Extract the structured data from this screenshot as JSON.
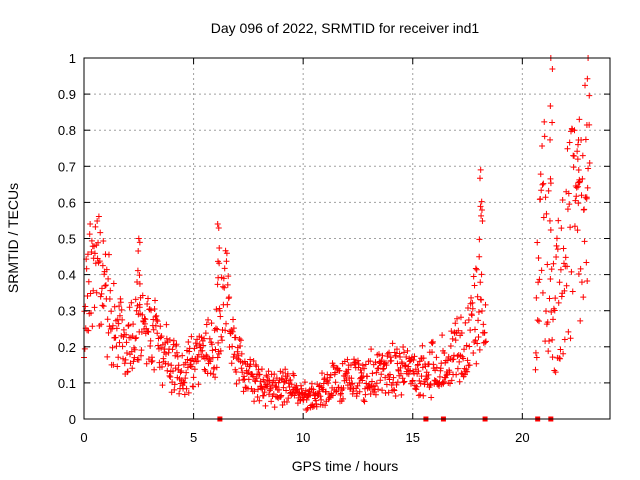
{
  "chart_data": {
    "type": "scatter",
    "title": "Day 096 of 2022, SRMTID for receiver ind1",
    "xlabel": "GPS time / hours",
    "ylabel": "SRMTID / TECUs",
    "xlim": [
      0,
      24
    ],
    "ylim": [
      0,
      1
    ],
    "x_ticks": [
      0,
      5,
      10,
      15,
      20
    ],
    "x_tick_labels": [
      "0",
      "5",
      "10",
      "15",
      "20"
    ],
    "y_ticks": [
      0,
      0.1,
      0.2,
      0.3,
      0.4,
      0.5,
      0.6,
      0.7,
      0.8,
      0.9,
      1
    ],
    "y_tick_labels": [
      "0",
      "0.1",
      "0.2",
      "0.3",
      "0.4",
      "0.5",
      "0.6",
      "0.7",
      "0.8",
      "0.9",
      "1"
    ],
    "grid": true,
    "marker": "+",
    "series": [
      {
        "name": "SRMTID",
        "color": "#ff0000",
        "trend": [
          {
            "x": 0.0,
            "y": 0.3
          },
          {
            "x": 0.3,
            "y": 0.4
          },
          {
            "x": 0.6,
            "y": 0.42
          },
          {
            "x": 1.0,
            "y": 0.33
          },
          {
            "x": 1.5,
            "y": 0.25
          },
          {
            "x": 2.0,
            "y": 0.2
          },
          {
            "x": 2.5,
            "y": 0.3
          },
          {
            "x": 3.0,
            "y": 0.24
          },
          {
            "x": 3.5,
            "y": 0.2
          },
          {
            "x": 4.0,
            "y": 0.15
          },
          {
            "x": 4.5,
            "y": 0.13
          },
          {
            "x": 5.0,
            "y": 0.15
          },
          {
            "x": 5.5,
            "y": 0.18
          },
          {
            "x": 6.0,
            "y": 0.2
          },
          {
            "x": 6.5,
            "y": 0.32
          },
          {
            "x": 7.0,
            "y": 0.18
          },
          {
            "x": 7.5,
            "y": 0.12
          },
          {
            "x": 8.0,
            "y": 0.1
          },
          {
            "x": 9.0,
            "y": 0.09
          },
          {
            "x": 10.0,
            "y": 0.07
          },
          {
            "x": 10.5,
            "y": 0.06
          },
          {
            "x": 11.0,
            "y": 0.09
          },
          {
            "x": 12.0,
            "y": 0.11
          },
          {
            "x": 13.0,
            "y": 0.12
          },
          {
            "x": 14.0,
            "y": 0.14
          },
          {
            "x": 15.0,
            "y": 0.13
          },
          {
            "x": 16.0,
            "y": 0.14
          },
          {
            "x": 16.5,
            "y": 0.16
          },
          {
            "x": 17.0,
            "y": 0.18
          },
          {
            "x": 17.5,
            "y": 0.2
          },
          {
            "x": 17.9,
            "y": 0.3
          },
          {
            "x": 18.2,
            "y": 0.4
          },
          {
            "x": 18.3,
            "y": 0.32
          }
        ],
        "gaps": [
          [
            18.4,
            20.6
          ]
        ],
        "late_segment": [
          {
            "x": 20.6,
            "y": 0.25
          },
          {
            "x": 20.9,
            "y": 0.55
          },
          {
            "x": 21.2,
            "y": 0.45
          },
          {
            "x": 21.5,
            "y": 0.3
          },
          {
            "x": 21.8,
            "y": 0.42
          },
          {
            "x": 22.2,
            "y": 0.5
          },
          {
            "x": 22.6,
            "y": 0.55
          },
          {
            "x": 22.9,
            "y": 0.6
          }
        ],
        "peaks": [
          {
            "x": 6.1,
            "y": 0.54
          },
          {
            "x": 2.5,
            "y": 0.5
          },
          {
            "x": 18.1,
            "y": 0.69
          },
          {
            "x": 21.3,
            "y": 1.0
          },
          {
            "x": 23.0,
            "y": 1.0
          },
          {
            "x": 22.6,
            "y": 0.83
          }
        ],
        "zero_markers_x": [
          6.2,
          15.6,
          16.4,
          18.3,
          20.7,
          21.3
        ]
      }
    ]
  }
}
